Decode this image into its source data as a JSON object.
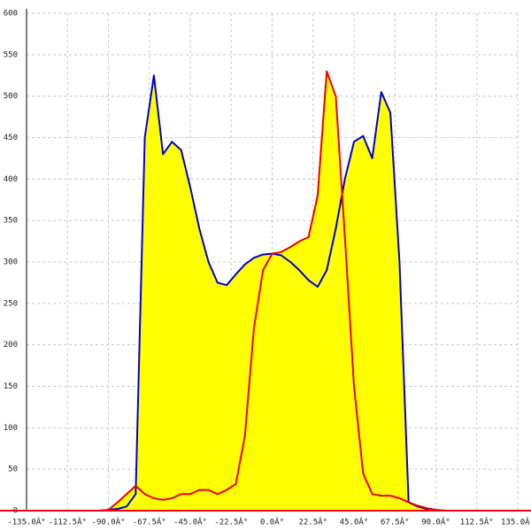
{
  "chart_data": {
    "type": "line",
    "grid": true,
    "fill": "#ffff00",
    "axis_color": "#ff0000",
    "xlim": [
      -135,
      135
    ],
    "ylim": [
      0,
      600
    ],
    "xticks": [
      {
        "value": -135,
        "label": "-135.0Â°"
      },
      {
        "value": -112.5,
        "label": "-112.5Â°"
      },
      {
        "value": -90,
        "label": "-90.0Â°"
      },
      {
        "value": -67.5,
        "label": "-67.5Â°"
      },
      {
        "value": -45,
        "label": "-45.0Â°"
      },
      {
        "value": -22.5,
        "label": "-22.5Â°"
      },
      {
        "value": 0,
        "label": "0.0Â°"
      },
      {
        "value": 22.5,
        "label": "22.5Â°"
      },
      {
        "value": 45,
        "label": "45.0Â°"
      },
      {
        "value": 67.5,
        "label": "67.5Â°"
      },
      {
        "value": 90,
        "label": "90.0Â°"
      },
      {
        "value": 112.5,
        "label": "112.5Â°"
      },
      {
        "value": 135,
        "label": "135.0Â°"
      }
    ],
    "yticks": [
      0,
      50,
      100,
      150,
      200,
      250,
      300,
      350,
      400,
      450,
      500,
      550,
      600
    ],
    "x": [
      -100,
      -95,
      -90,
      -85,
      -80,
      -75,
      -70,
      -65,
      -60,
      -55,
      -50,
      -45,
      -40,
      -35,
      -30,
      -25,
      -20,
      -15,
      -10,
      -5,
      0,
      5,
      10,
      15,
      20,
      25,
      30,
      35,
      40,
      45,
      50,
      55,
      60,
      65,
      70,
      75,
      80,
      85,
      90,
      95,
      100
    ],
    "series": [
      {
        "color": "#0000cc",
        "values": [
          0,
          0,
          1,
          2,
          5,
          20,
          450,
          525,
          430,
          445,
          435,
          390,
          340,
          300,
          275,
          272,
          285,
          297,
          305,
          309,
          310,
          308,
          300,
          290,
          278,
          270,
          290,
          340,
          400,
          445,
          452,
          425,
          505,
          480,
          300,
          10,
          5,
          2,
          1,
          0,
          0
        ]
      },
      {
        "color": "#ee0000",
        "values": [
          0,
          0,
          1,
          10,
          20,
          30,
          20,
          15,
          13,
          15,
          20,
          20,
          25,
          25,
          20,
          25,
          32,
          90,
          220,
          290,
          310,
          312,
          318,
          325,
          330,
          380,
          530,
          500,
          330,
          150,
          45,
          20,
          18,
          18,
          15,
          10,
          6,
          3,
          1,
          0,
          0
        ]
      }
    ]
  }
}
